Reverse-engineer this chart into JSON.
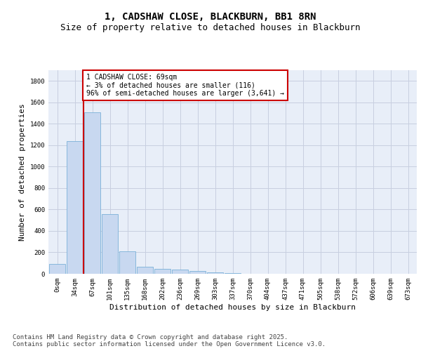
{
  "title_line1": "1, CADSHAW CLOSE, BLACKBURN, BB1 8RN",
  "title_line2": "Size of property relative to detached houses in Blackburn",
  "xlabel": "Distribution of detached houses by size in Blackburn",
  "ylabel": "Number of detached properties",
  "bar_color": "#c8d8f0",
  "bar_edge_color": "#7ab0d8",
  "grid_color": "#c8cfe0",
  "bg_color": "#e8eef8",
  "annotation_text": "1 CADSHAW CLOSE: 69sqm\n← 3% of detached houses are smaller (116)\n96% of semi-detached houses are larger (3,641) →",
  "annotation_box_edge_color": "#cc0000",
  "vline_color": "#cc0000",
  "vline_x_index": 2,
  "categories": [
    "0sqm",
    "34sqm",
    "67sqm",
    "101sqm",
    "135sqm",
    "168sqm",
    "202sqm",
    "236sqm",
    "269sqm",
    "303sqm",
    "337sqm",
    "370sqm",
    "404sqm",
    "437sqm",
    "471sqm",
    "505sqm",
    "538sqm",
    "572sqm",
    "606sqm",
    "639sqm",
    "673sqm"
  ],
  "values": [
    95,
    1240,
    1510,
    560,
    210,
    65,
    48,
    37,
    28,
    15,
    8,
    3,
    2,
    1,
    0,
    0,
    0,
    0,
    0,
    0,
    0
  ],
  "ylim": [
    0,
    1900
  ],
  "yticks": [
    0,
    200,
    400,
    600,
    800,
    1000,
    1200,
    1400,
    1600,
    1800
  ],
  "footnote": "Contains HM Land Registry data © Crown copyright and database right 2025.\nContains public sector information licensed under the Open Government Licence v3.0.",
  "title_fontsize": 10,
  "subtitle_fontsize": 9,
  "axis_label_fontsize": 8,
  "tick_fontsize": 6.5,
  "annotation_fontsize": 7,
  "footnote_fontsize": 6.5
}
